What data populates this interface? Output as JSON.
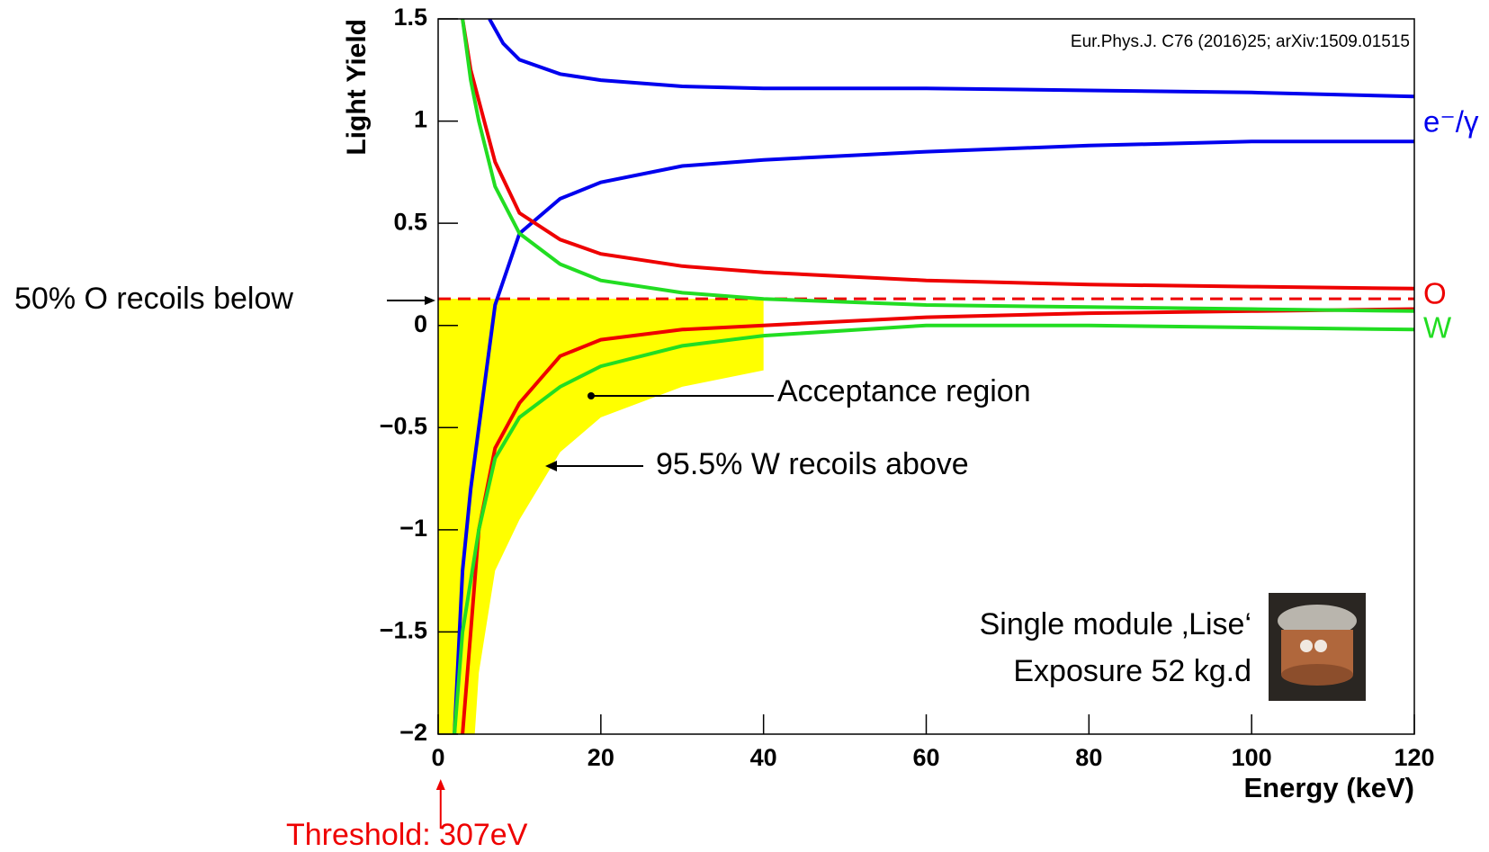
{
  "chart_data": {
    "type": "line",
    "x_label": "Energy (keV)",
    "y_label": "Light Yield",
    "citation": "Eur.Phys.J. C76 (2016)25; arXiv:1509.01515",
    "xlim": [
      0,
      120
    ],
    "ylim": [
      -2,
      1.5
    ],
    "xticks": [
      0,
      20,
      40,
      60,
      80,
      100,
      120
    ],
    "yticks": [
      {
        "value": -2,
        "label": "−2"
      },
      {
        "value": -1.5,
        "label": "−1.5"
      },
      {
        "value": -1,
        "label": "−1"
      },
      {
        "value": -0.5,
        "label": "−0.5"
      },
      0,
      0.5,
      1,
      1.5
    ],
    "series": [
      {
        "name": "e⁻/γ",
        "color": "#0000ee",
        "upper": {
          "x": [
            6.3,
            8,
            10,
            15,
            20,
            30,
            40,
            60,
            80,
            100,
            120
          ],
          "values": [
            1.5,
            1.38,
            1.3,
            1.23,
            1.2,
            1.17,
            1.16,
            1.16,
            1.15,
            1.14,
            1.12
          ]
        },
        "lower": {
          "x": [
            2,
            3,
            4,
            5,
            7,
            10,
            15,
            20,
            30,
            40,
            60,
            80,
            100,
            120
          ],
          "values": [
            -2,
            -1.2,
            -0.8,
            -0.5,
            0.1,
            0.45,
            0.62,
            0.7,
            0.78,
            0.81,
            0.85,
            0.88,
            0.9,
            0.9
          ]
        }
      },
      {
        "name": "O",
        "color": "#ee0000",
        "upper": {
          "x": [
            3,
            4,
            5,
            7,
            10,
            15,
            20,
            30,
            40,
            60,
            80,
            100,
            120
          ],
          "values": [
            1.5,
            1.25,
            1.1,
            0.8,
            0.55,
            0.42,
            0.35,
            0.29,
            0.26,
            0.22,
            0.2,
            0.19,
            0.18
          ]
        },
        "lower": {
          "x": [
            3,
            4,
            5,
            7,
            10,
            15,
            20,
            30,
            40,
            60,
            80,
            100,
            120
          ],
          "values": [
            -2,
            -1.5,
            -1.0,
            -0.6,
            -0.38,
            -0.15,
            -0.07,
            -0.02,
            0.0,
            0.04,
            0.06,
            0.07,
            0.08
          ]
        }
      },
      {
        "name": "W",
        "color": "#22dd22",
        "upper": {
          "x": [
            3,
            4,
            5,
            7,
            10,
            15,
            20,
            30,
            40,
            60,
            80,
            100,
            120
          ],
          "values": [
            1.5,
            1.2,
            1.0,
            0.68,
            0.45,
            0.3,
            0.22,
            0.16,
            0.13,
            0.1,
            0.09,
            0.08,
            0.07
          ]
        },
        "lower": {
          "x": [
            2,
            3,
            5,
            7,
            10,
            15,
            20,
            30,
            40,
            60,
            80,
            100,
            120
          ],
          "values": [
            -2,
            -1.5,
            -1.0,
            -0.65,
            -0.45,
            -0.3,
            -0.2,
            -0.1,
            -0.05,
            0.0,
            0.0,
            -0.01,
            -0.02
          ]
        }
      }
    ],
    "median_line": {
      "label": "50% O recoils below",
      "y": 0.13,
      "color": "#ee0000"
    },
    "acceptance": {
      "label": "Acceptance region",
      "color": "#ffff00",
      "x": [
        0,
        4.5,
        5,
        7,
        10,
        15,
        20,
        30,
        40
      ],
      "lower": [
        -2,
        -2,
        -1.7,
        -1.2,
        -0.95,
        -0.62,
        -0.45,
        -0.3,
        -0.22
      ]
    },
    "w_limit_label": "95.5% W recoils above",
    "threshold": {
      "label": "Threshold: 307eV",
      "x": 0.307
    },
    "module": [
      "Single module ‚Lise‘",
      "Exposure 52 kg.d"
    ]
  }
}
